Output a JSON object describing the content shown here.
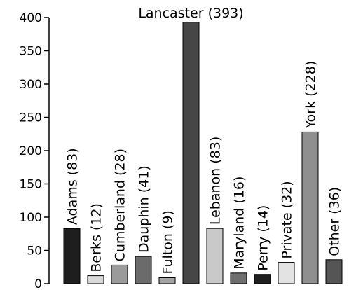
{
  "chart_data": {
    "type": "bar",
    "categories": [
      "Adams",
      "Berks",
      "Cumberland",
      "Dauphin",
      "Fulton",
      "Lancaster",
      "Lebanon",
      "Maryland",
      "Perry",
      "Private",
      "York",
      "Other"
    ],
    "values": [
      83,
      12,
      28,
      41,
      9,
      393,
      83,
      16,
      14,
      32,
      228,
      36
    ],
    "labels": [
      "Adams (83)",
      "Berks (12)",
      "Cumberland (28)",
      "Dauphin (41)",
      "Fulton (9)",
      "Lancaster (393)",
      "Lebanon (83)",
      "Maryland (16)",
      "Perry (14)",
      "Private (32)",
      "York (228)",
      "Other (36)"
    ],
    "colors": [
      "#1e1e1e",
      "#d9d9d9",
      "#9a9a9a",
      "#6b6b6b",
      "#a3a3a3",
      "#464646",
      "#c9c9c9",
      "#6e6e6e",
      "#1e1e1e",
      "#e3e3e3",
      "#8f8f8f",
      "#555555"
    ],
    "yticks": [
      0,
      50,
      100,
      150,
      200,
      250,
      300,
      350,
      400
    ],
    "ylim": [
      0,
      400
    ],
    "grid": false,
    "title": "",
    "xlabel": "",
    "ylabel": ""
  }
}
